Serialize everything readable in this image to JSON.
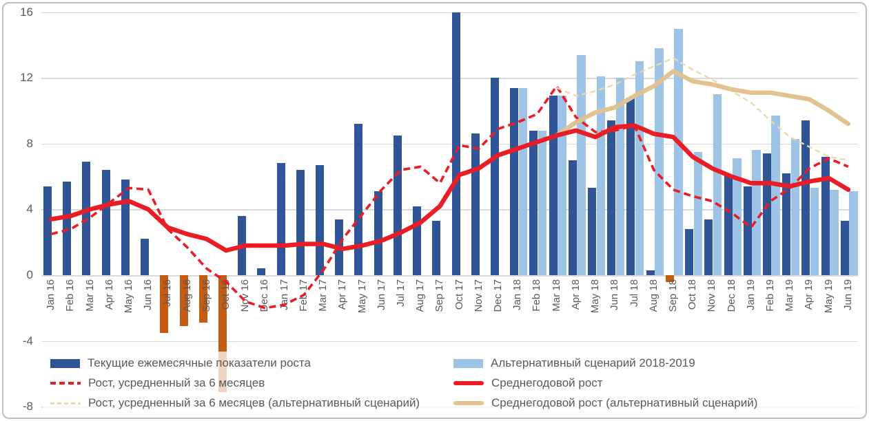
{
  "chart_data": {
    "type": "bar",
    "subtype": "combo-bar-line",
    "title": "",
    "xlabel": "",
    "ylabel": "",
    "ylim": [
      -8,
      16
    ],
    "yticks": [
      16,
      12,
      8,
      4,
      0,
      -4,
      -8
    ],
    "grid": true,
    "legend_position": "bottom-two-columns",
    "colors": {
      "current_bar": "#2F5597",
      "negative_bar": "#C55A11",
      "alternative_bar": "#9DC3E6",
      "red_line": "#EA1C24",
      "beige_line": "#E2C290",
      "beige_dashed_line": "#ECD8AC",
      "gridline": "#D9D9D9",
      "axis_text": "#595959",
      "frame_border": "#BFBFBF"
    },
    "categories": [
      "Jan 16",
      "Feb 16",
      "Mar 16",
      "Apr 16",
      "May 16",
      "Jun 16",
      "Jul 16",
      "Aug 16",
      "Sep 16",
      "Oct 16",
      "Nov 16",
      "Dec 16",
      "Jan 17",
      "Feb 17",
      "Mar 17",
      "Apr 17",
      "May 17",
      "Jun 17",
      "Jul 17",
      "Aug 17",
      "Sep 17",
      "Oct 17",
      "Nov 17",
      "Dec 17",
      "Jan 18",
      "Feb 18",
      "Mar 18",
      "Apr 18",
      "May 18",
      "Jun 18",
      "Jul 18",
      "Aug 18",
      "Sep 18",
      "Oct 18",
      "Nov 18",
      "Dec 18",
      "Jan 19",
      "Feb 19",
      "Mar 19",
      "Apr 19",
      "May 19",
      "Jun 19"
    ],
    "series": [
      {
        "name": "Текущие ежемесячные показатели роста",
        "type": "bar",
        "color": "#2F5597",
        "negative_color": "#C55A11",
        "values": [
          5.4,
          5.7,
          6.9,
          6.4,
          5.8,
          2.2,
          -3.5,
          -3.1,
          -2.9,
          -7.1,
          3.6,
          0.4,
          6.8,
          6.4,
          6.7,
          3.4,
          9.2,
          5.1,
          8.5,
          4.2,
          3.3,
          16.0,
          8.6,
          12.0,
          11.4,
          8.8,
          10.9,
          7.0,
          5.3,
          9.4,
          10.8,
          0.3,
          -0.4,
          2.8,
          3.4,
          6.1,
          5.4,
          7.4,
          6.2,
          9.4,
          7.2,
          3.3
        ]
      },
      {
        "name": "Альтернативный сценарий 2018-2019",
        "type": "bar",
        "color": "#9DC3E6",
        "values": [
          null,
          null,
          null,
          null,
          null,
          null,
          null,
          null,
          null,
          null,
          null,
          null,
          null,
          null,
          null,
          null,
          null,
          null,
          null,
          null,
          null,
          null,
          null,
          null,
          11.4,
          8.8,
          10.9,
          13.4,
          12.1,
          12.0,
          13.0,
          13.8,
          15.0,
          7.5,
          11.0,
          7.1,
          7.6,
          9.7,
          8.3,
          5.3,
          5.2,
          5.1
        ]
      },
      {
        "name": "Рост, усредненный за 6 месяцев",
        "type": "line-dashed",
        "color": "#EA1C24",
        "values": [
          2.5,
          2.8,
          3.5,
          4.4,
          5.3,
          5.2,
          2.8,
          1.7,
          0.4,
          -0.4,
          -1.6,
          -2.0,
          -1.8,
          -1.2,
          0.3,
          2.2,
          3.7,
          5.2,
          6.4,
          6.6,
          5.6,
          7.9,
          7.7,
          8.9,
          9.3,
          9.8,
          11.5,
          9.6,
          8.7,
          8.8,
          9.1,
          6.4,
          5.2,
          4.8,
          4.5,
          3.8,
          2.9,
          4.5,
          5.3,
          6.5,
          7.1,
          6.6
        ]
      },
      {
        "name": "Среднегодовой рост",
        "type": "line",
        "color": "#EA1C24",
        "values": [
          3.4,
          3.6,
          4.0,
          4.3,
          4.5,
          4.0,
          2.9,
          2.5,
          2.2,
          1.5,
          1.8,
          1.8,
          1.8,
          1.9,
          1.9,
          1.6,
          1.8,
          2.1,
          2.6,
          3.2,
          4.2,
          6.1,
          6.5,
          7.3,
          7.7,
          8.1,
          8.5,
          8.8,
          8.4,
          9.0,
          9.1,
          8.6,
          8.4,
          7.2,
          6.5,
          6.0,
          5.6,
          5.6,
          5.4,
          5.7,
          5.9,
          5.2
        ]
      },
      {
        "name": "Рост, усредненный за 6 месяцев (альтернативный сценарий)",
        "type": "line-dashed",
        "color": "#ECD8AC",
        "values": [
          null,
          null,
          null,
          null,
          null,
          null,
          null,
          null,
          null,
          null,
          null,
          null,
          null,
          null,
          null,
          null,
          null,
          null,
          null,
          null,
          null,
          null,
          null,
          null,
          null,
          null,
          11.4,
          10.9,
          11.2,
          11.6,
          12.2,
          12.7,
          13.2,
          12.5,
          11.9,
          11.2,
          10.5,
          9.4,
          8.4,
          7.8,
          7.2,
          7.0
        ]
      },
      {
        "name": "Среднегодовой рост (альтернативный сценарий)",
        "type": "line",
        "color": "#E2C290",
        "values": [
          null,
          null,
          null,
          null,
          null,
          null,
          null,
          null,
          null,
          null,
          null,
          null,
          null,
          null,
          null,
          null,
          null,
          null,
          null,
          null,
          null,
          null,
          null,
          null,
          null,
          null,
          8.5,
          9.3,
          9.9,
          10.2,
          10.9,
          11.5,
          12.4,
          11.8,
          11.6,
          11.3,
          11.1,
          11.1,
          10.9,
          10.7,
          10.0,
          9.2
        ]
      }
    ]
  },
  "legend": {
    "left_column_rows": [
      "Текущие ежемесячные показатели роста",
      "Рост, усредненный за 6 месяцев",
      "Рост, усредненный за 6 месяцев (альтернативный сценарий)"
    ],
    "right_column_rows": [
      "Альтернативный сценарий 2018-2019",
      "Среднегодовой рост",
      "Среднегодовой рост (альтернативный сценарий)"
    ]
  }
}
